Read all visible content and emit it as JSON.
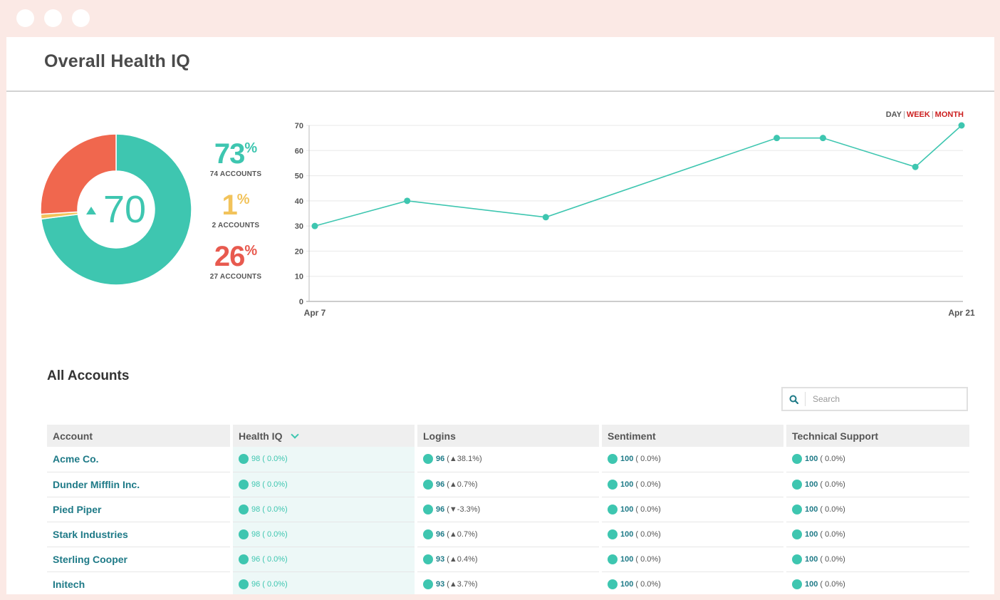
{
  "page": {
    "title": "Overall Health IQ"
  },
  "summary": {
    "score": "70",
    "good": {
      "pct": "73",
      "unit": "%",
      "accounts": "74 ACCOUNTS",
      "color": "#3ec6b0"
    },
    "neutral": {
      "pct": "1",
      "unit": "%",
      "accounts": "2 ACCOUNTS",
      "color": "#f2c35b"
    },
    "bad": {
      "pct": "26",
      "unit": "%",
      "accounts": "27 ACCOUNTS",
      "color": "#e85a4f"
    },
    "donut_segments": [
      {
        "name": "good",
        "percent": 73,
        "color": "#3ec6b0"
      },
      {
        "name": "neutral",
        "percent": 1,
        "color": "#f2c35b"
      },
      {
        "name": "bad",
        "percent": 26,
        "color": "#f0674e"
      }
    ]
  },
  "range_toggle": {
    "day": "DAY",
    "week": "WEEK",
    "month": "MONTH",
    "sep": "|",
    "active_color": "#cc1f1f"
  },
  "chart_data": {
    "type": "line",
    "x": [
      "Apr 7",
      "Apr 9",
      "Apr 12",
      "Apr 17",
      "Apr 18",
      "Apr 20",
      "Apr 21"
    ],
    "x_day_offsets": [
      0,
      2,
      5,
      10,
      11,
      13,
      14
    ],
    "x_tick_labels": [
      "Apr 7",
      "Apr 21"
    ],
    "y": [
      30,
      40,
      33.5,
      65,
      65,
      53.5,
      70
    ],
    "ylim": [
      0,
      70
    ],
    "y_ticks": [
      0,
      10,
      20,
      30,
      40,
      50,
      60,
      70
    ],
    "grid": true,
    "color": "#3ec6b0"
  },
  "accounts": {
    "title": "All Accounts",
    "search_placeholder": "Search",
    "columns": [
      "Account",
      "Health IQ",
      "Logins",
      "Sentiment",
      "Technical Support"
    ],
    "rows": [
      {
        "name": "Acme Co.",
        "health": {
          "v": "98",
          "c": "( 0.0%)"
        },
        "logins": {
          "v": "96",
          "c": "(▲38.1%)"
        },
        "sentiment": {
          "v": "100",
          "c": "( 0.0%)"
        },
        "support": {
          "v": "100",
          "c": "( 0.0%)"
        }
      },
      {
        "name": "Dunder Mifflin Inc.",
        "health": {
          "v": "98",
          "c": "( 0.0%)"
        },
        "logins": {
          "v": "96",
          "c": "(▲0.7%)"
        },
        "sentiment": {
          "v": "100",
          "c": "( 0.0%)"
        },
        "support": {
          "v": "100",
          "c": "( 0.0%)"
        }
      },
      {
        "name": "Pied Piper",
        "health": {
          "v": "98",
          "c": "( 0.0%)"
        },
        "logins": {
          "v": "96",
          "c": "(▼-3.3%)"
        },
        "sentiment": {
          "v": "100",
          "c": "( 0.0%)"
        },
        "support": {
          "v": "100",
          "c": "( 0.0%)"
        }
      },
      {
        "name": "Stark Industries",
        "health": {
          "v": "98",
          "c": "( 0.0%)"
        },
        "logins": {
          "v": "96",
          "c": "(▲0.7%)"
        },
        "sentiment": {
          "v": "100",
          "c": "( 0.0%)"
        },
        "support": {
          "v": "100",
          "c": "( 0.0%)"
        }
      },
      {
        "name": "Sterling Cooper",
        "health": {
          "v": "96",
          "c": "( 0.0%)"
        },
        "logins": {
          "v": "93",
          "c": "(▲0.4%)"
        },
        "sentiment": {
          "v": "100",
          "c": "( 0.0%)"
        },
        "support": {
          "v": "100",
          "c": "( 0.0%)"
        }
      },
      {
        "name": "Initech",
        "health": {
          "v": "96",
          "c": "( 0.0%)"
        },
        "logins": {
          "v": "93",
          "c": "(▲3.7%)"
        },
        "sentiment": {
          "v": "100",
          "c": "( 0.0%)"
        },
        "support": {
          "v": "100",
          "c": "( 0.0%)"
        }
      }
    ]
  }
}
